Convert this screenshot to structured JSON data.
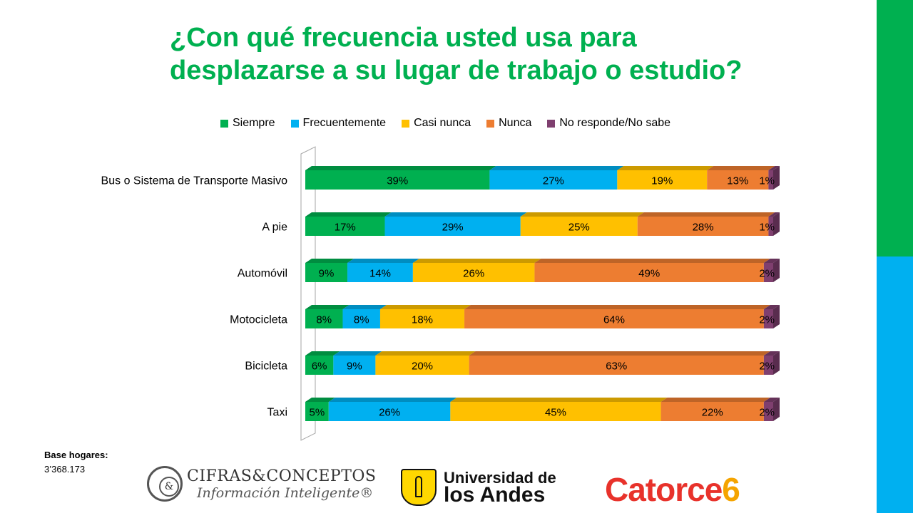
{
  "title": {
    "line1": "¿Con qué frecuencia usted usa para",
    "line2": "desplazarse a su lugar de trabajo o estudio?"
  },
  "footnote": {
    "label": "Base hogares:",
    "value": "3’368.173"
  },
  "logos": {
    "cifras_line1": "CIFRAS&CONCEPTOS",
    "cifras_line2": "Información Inteligente®",
    "cifras_mark": "&",
    "uandes_line1": "Universidad de",
    "uandes_line2": "los Andes",
    "catorce_text": "Catorce",
    "catorce_num": "6"
  },
  "colors": {
    "side_green": "#00b050",
    "side_blue": "#00b0f0",
    "title": "#00b050"
  },
  "chart_data": {
    "type": "bar",
    "orientation": "horizontal",
    "stacked": "percent",
    "style": "3d",
    "legend_position": "top",
    "categories": [
      "Bus o Sistema de Transporte Masivo",
      "A pie",
      "Automóvil",
      "Motocicleta",
      "Bicicleta",
      "Taxi"
    ],
    "series": [
      {
        "name": "Siempre",
        "color": "#00b050",
        "values": [
          39,
          17,
          9,
          8,
          6,
          5
        ]
      },
      {
        "name": "Frecuentemente",
        "color": "#00b0f0",
        "values": [
          27,
          29,
          14,
          8,
          9,
          26
        ]
      },
      {
        "name": "Casi nunca",
        "color": "#ffc000",
        "values": [
          19,
          25,
          26,
          18,
          20,
          45
        ]
      },
      {
        "name": "Nunca",
        "color": "#ed7d31",
        "values": [
          13,
          28,
          49,
          64,
          63,
          22
        ]
      },
      {
        "name": "No responde/No sabe",
        "color": "#7f3f6f",
        "values": [
          1,
          1,
          2,
          2,
          2,
          2
        ]
      }
    ],
    "data_labels": [
      [
        "39%",
        "27%",
        "19%",
        "13%",
        "1%"
      ],
      [
        "17%",
        "29%",
        "25%",
        "28%",
        "1%"
      ],
      [
        "9%",
        "14%",
        "26%",
        "49%",
        "2%"
      ],
      [
        "8%",
        "8%",
        "18%",
        "64%",
        "2%"
      ],
      [
        "6%",
        "9%",
        "20%",
        "63%",
        "2%"
      ],
      [
        "5%",
        "26%",
        "45%",
        "22%",
        "2%"
      ]
    ],
    "xlim": [
      0,
      100
    ]
  }
}
